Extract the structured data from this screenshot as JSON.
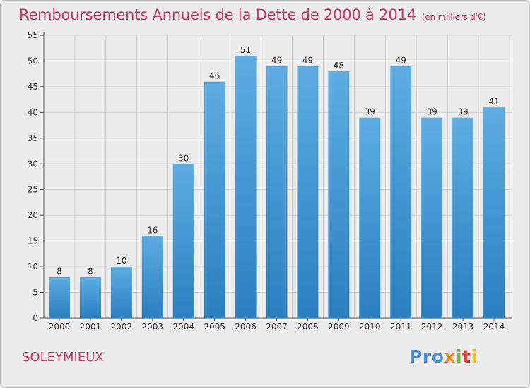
{
  "header": {
    "title": "Remboursements Annuels de la Dette de 2000 à 2014",
    "unit": "(en milliers d'€)"
  },
  "footer": {
    "commune": "SOLEYMIEUX",
    "logo": [
      "Pro",
      "x",
      "i",
      "t",
      "i"
    ]
  },
  "colors": {
    "title": "#cc3366",
    "bar_top": "#5dade2",
    "bar_bottom": "#2a7fbf",
    "grid": "#cfcfcf",
    "background": "#ececec"
  },
  "chart_data": {
    "type": "bar",
    "categories": [
      "2000",
      "2001",
      "2002",
      "2003",
      "2004",
      "2005",
      "2006",
      "2007",
      "2008",
      "2009",
      "2010",
      "2011",
      "2012",
      "2013",
      "2014"
    ],
    "values": [
      8,
      8,
      10,
      16,
      30,
      46,
      51,
      49,
      49,
      48,
      39,
      49,
      39,
      39,
      41
    ],
    "value_labels": [
      "8",
      "8",
      "10",
      "16",
      "30",
      "46",
      "51",
      "49",
      "49",
      "48",
      "39",
      "49",
      "39",
      "39",
      "41"
    ],
    "yticks": [
      "0",
      "5",
      "10",
      "15",
      "20",
      "25",
      "30",
      "35",
      "40",
      "45",
      "50",
      "55"
    ],
    "ylim": [
      0,
      55
    ],
    "grid": true
  }
}
